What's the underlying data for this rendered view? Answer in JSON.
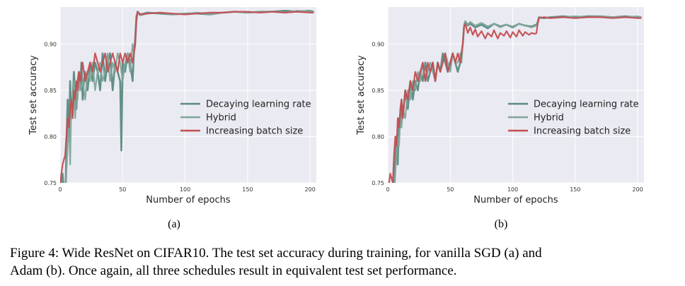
{
  "colors": {
    "plot_background": "#eaeaf2",
    "grid": "#ffffff",
    "decaying": "#5b8a80",
    "hybrid": "#7fa69b",
    "increasing": "#c44e52"
  },
  "caption": {
    "line1": "Figure 4: Wide ResNet on CIFAR10. The test set accuracy during training, for vanilla SGD (a) and",
    "line2": "Adam (b). Once again, all three schedules result in equivalent test set performance."
  },
  "chart_data": [
    {
      "type": "line",
      "panel_label": "(a)",
      "xlabel": "Number of epochs",
      "ylabel": "Test set accuracy",
      "xlim": [
        0,
        205
      ],
      "ylim": [
        0.75,
        0.94
      ],
      "xticks": [
        0,
        50,
        100,
        150,
        200
      ],
      "xtick_labels": [
        "0",
        "50",
        "100",
        "150",
        "200"
      ],
      "yticks": [
        0.75,
        0.8,
        0.85,
        0.9
      ],
      "ytick_labels": [
        "0.75",
        "0.80",
        "0.85",
        "0.90"
      ],
      "grid": true,
      "legend_position": "center-right",
      "series": [
        {
          "name": "Decaying learning rate",
          "x": [
            0,
            2,
            4,
            5,
            6,
            7,
            8,
            9,
            10,
            11,
            12,
            13,
            14,
            15,
            16,
            17,
            18,
            19,
            20,
            22,
            24,
            26,
            28,
            30,
            32,
            34,
            36,
            38,
            40,
            42,
            44,
            46,
            48,
            49,
            50,
            52,
            54,
            56,
            58,
            59,
            60,
            61,
            62,
            64,
            70,
            80,
            90,
            100,
            110,
            120,
            130,
            140,
            150,
            160,
            170,
            180,
            190,
            200,
            203
          ],
          "y": [
            0.74,
            0.76,
            0.72,
            0.79,
            0.84,
            0.8,
            0.86,
            0.82,
            0.84,
            0.87,
            0.85,
            0.83,
            0.86,
            0.87,
            0.85,
            0.88,
            0.84,
            0.86,
            0.87,
            0.85,
            0.88,
            0.86,
            0.88,
            0.87,
            0.85,
            0.89,
            0.86,
            0.88,
            0.89,
            0.85,
            0.88,
            0.87,
            0.86,
            0.785,
            0.88,
            0.87,
            0.89,
            0.88,
            0.86,
            0.89,
            0.9,
            0.925,
            0.935,
            0.932,
            0.934,
            0.933,
            0.932,
            0.933,
            0.933,
            0.932,
            0.934,
            0.935,
            0.934,
            0.935,
            0.935,
            0.936,
            0.935,
            0.936,
            0.935
          ]
        },
        {
          "name": "Hybrid",
          "x": [
            0,
            2,
            4,
            5,
            6,
            7,
            8,
            9,
            10,
            11,
            12,
            13,
            14,
            15,
            16,
            18,
            20,
            22,
            24,
            26,
            28,
            30,
            32,
            34,
            36,
            38,
            40,
            42,
            44,
            46,
            48,
            50,
            52,
            54,
            56,
            58,
            59,
            60,
            61,
            62,
            64,
            70,
            80,
            90,
            100,
            110,
            120,
            130,
            140,
            150,
            160,
            170,
            180,
            190,
            200,
            203
          ],
          "y": [
            0.73,
            0.75,
            0.72,
            0.76,
            0.79,
            0.82,
            0.77,
            0.84,
            0.83,
            0.86,
            0.82,
            0.85,
            0.84,
            0.87,
            0.85,
            0.86,
            0.84,
            0.87,
            0.86,
            0.88,
            0.85,
            0.87,
            0.88,
            0.86,
            0.87,
            0.89,
            0.86,
            0.88,
            0.87,
            0.89,
            0.88,
            0.86,
            0.88,
            0.89,
            0.87,
            0.9,
            0.89,
            0.91,
            0.93,
            0.934,
            0.931,
            0.933,
            0.934,
            0.932,
            0.933,
            0.934,
            0.932,
            0.934,
            0.935,
            0.934,
            0.935,
            0.935,
            0.934,
            0.936,
            0.935,
            0.935
          ]
        },
        {
          "name": "Increasing batch size",
          "x": [
            0,
            2,
            4,
            5,
            6,
            7,
            8,
            9,
            10,
            11,
            12,
            13,
            14,
            15,
            16,
            18,
            20,
            22,
            24,
            26,
            28,
            30,
            32,
            34,
            36,
            38,
            40,
            42,
            44,
            46,
            48,
            50,
            52,
            54,
            56,
            58,
            59,
            60,
            61,
            62,
            64,
            70,
            80,
            90,
            100,
            110,
            120,
            130,
            140,
            150,
            160,
            170,
            180,
            190,
            200,
            203
          ],
          "y": [
            0.75,
            0.77,
            0.78,
            0.8,
            0.82,
            0.81,
            0.83,
            0.84,
            0.82,
            0.85,
            0.84,
            0.86,
            0.85,
            0.87,
            0.86,
            0.88,
            0.86,
            0.87,
            0.88,
            0.87,
            0.89,
            0.88,
            0.87,
            0.88,
            0.89,
            0.87,
            0.88,
            0.89,
            0.88,
            0.87,
            0.89,
            0.88,
            0.89,
            0.88,
            0.89,
            0.88,
            0.89,
            0.9,
            0.93,
            0.935,
            0.932,
            0.933,
            0.934,
            0.933,
            0.932,
            0.933,
            0.934,
            0.934,
            0.935,
            0.935,
            0.934,
            0.935,
            0.934,
            0.935,
            0.934,
            0.934
          ]
        }
      ]
    },
    {
      "type": "line",
      "panel_label": "(b)",
      "xlabel": "Number of epochs",
      "ylabel": "Test set accuracy",
      "xlim": [
        0,
        205
      ],
      "ylim": [
        0.75,
        0.94
      ],
      "xticks": [
        0,
        50,
        100,
        150,
        200
      ],
      "xtick_labels": [
        "0",
        "50",
        "100",
        "150",
        "200"
      ],
      "yticks": [
        0.75,
        0.8,
        0.85,
        0.9
      ],
      "ytick_labels": [
        "0.75",
        "0.80",
        "0.85",
        "0.90"
      ],
      "grid": true,
      "legend_position": "center-right",
      "series": [
        {
          "name": "Decaying learning rate",
          "x": [
            0,
            2,
            4,
            5,
            6,
            7,
            8,
            9,
            10,
            11,
            12,
            14,
            16,
            18,
            20,
            22,
            24,
            26,
            28,
            30,
            32,
            34,
            36,
            38,
            40,
            42,
            44,
            46,
            48,
            50,
            52,
            54,
            56,
            58,
            59,
            60,
            61,
            62,
            64,
            66,
            70,
            75,
            80,
            85,
            90,
            95,
            100,
            105,
            110,
            115,
            119,
            120,
            121,
            125,
            130,
            140,
            150,
            160,
            170,
            180,
            190,
            200,
            203
          ],
          "y": [
            0.74,
            0.73,
            0.75,
            0.74,
            0.78,
            0.8,
            0.77,
            0.82,
            0.81,
            0.84,
            0.82,
            0.85,
            0.83,
            0.86,
            0.84,
            0.86,
            0.85,
            0.87,
            0.86,
            0.88,
            0.86,
            0.87,
            0.88,
            0.86,
            0.88,
            0.87,
            0.89,
            0.88,
            0.87,
            0.88,
            0.89,
            0.88,
            0.87,
            0.88,
            0.89,
            0.9,
            0.918,
            0.924,
            0.92,
            0.922,
            0.918,
            0.921,
            0.917,
            0.922,
            0.919,
            0.921,
            0.918,
            0.922,
            0.92,
            0.919,
            0.921,
            0.924,
            0.929,
            0.928,
            0.929,
            0.93,
            0.929,
            0.93,
            0.93,
            0.929,
            0.93,
            0.929,
            0.929
          ]
        },
        {
          "name": "Hybrid",
          "x": [
            0,
            2,
            4,
            5,
            6,
            7,
            8,
            9,
            10,
            11,
            12,
            14,
            16,
            18,
            20,
            22,
            24,
            26,
            28,
            30,
            32,
            34,
            36,
            38,
            40,
            42,
            44,
            46,
            48,
            50,
            52,
            54,
            56,
            58,
            59,
            60,
            61,
            62,
            64,
            66,
            70,
            75,
            80,
            85,
            90,
            95,
            100,
            105,
            110,
            115,
            119,
            120,
            121,
            125,
            130,
            140,
            150,
            160,
            170,
            180,
            190,
            200,
            203
          ],
          "y": [
            0.73,
            0.74,
            0.75,
            0.73,
            0.76,
            0.78,
            0.8,
            0.79,
            0.82,
            0.81,
            0.83,
            0.82,
            0.85,
            0.84,
            0.86,
            0.85,
            0.87,
            0.86,
            0.88,
            0.86,
            0.87,
            0.88,
            0.87,
            0.86,
            0.88,
            0.87,
            0.88,
            0.89,
            0.88,
            0.87,
            0.89,
            0.88,
            0.88,
            0.89,
            0.88,
            0.9,
            0.921,
            0.925,
            0.921,
            0.924,
            0.92,
            0.923,
            0.919,
            0.922,
            0.918,
            0.921,
            0.919,
            0.922,
            0.92,
            0.918,
            0.92,
            0.923,
            0.928,
            0.929,
            0.928,
            0.929,
            0.93,
            0.929,
            0.93,
            0.929,
            0.929,
            0.93,
            0.929
          ]
        },
        {
          "name": "Increasing batch size",
          "x": [
            0,
            2,
            4,
            5,
            6,
            7,
            8,
            9,
            10,
            11,
            12,
            14,
            16,
            18,
            20,
            22,
            24,
            26,
            28,
            30,
            32,
            34,
            36,
            38,
            40,
            42,
            44,
            46,
            48,
            50,
            52,
            54,
            56,
            58,
            59,
            60,
            61,
            62,
            64,
            66,
            68,
            70,
            72,
            75,
            78,
            80,
            83,
            85,
            88,
            90,
            93,
            95,
            98,
            100,
            103,
            105,
            108,
            110,
            113,
            115,
            118,
            119,
            120,
            121,
            125,
            130,
            140,
            150,
            160,
            170,
            180,
            190,
            200,
            203
          ],
          "y": [
            0.74,
            0.76,
            0.75,
            0.78,
            0.8,
            0.79,
            0.82,
            0.81,
            0.83,
            0.84,
            0.82,
            0.85,
            0.84,
            0.86,
            0.85,
            0.87,
            0.86,
            0.87,
            0.88,
            0.86,
            0.88,
            0.87,
            0.88,
            0.86,
            0.88,
            0.87,
            0.88,
            0.89,
            0.87,
            0.88,
            0.89,
            0.88,
            0.89,
            0.88,
            0.89,
            0.9,
            0.918,
            0.922,
            0.912,
            0.918,
            0.91,
            0.916,
            0.908,
            0.914,
            0.906,
            0.912,
            0.908,
            0.915,
            0.906,
            0.912,
            0.909,
            0.914,
            0.907,
            0.913,
            0.908,
            0.915,
            0.909,
            0.913,
            0.91,
            0.912,
            0.911,
            0.912,
            0.922,
            0.928,
            0.929,
            0.928,
            0.929,
            0.928,
            0.929,
            0.929,
            0.928,
            0.929,
            0.928,
            0.928
          ]
        }
      ]
    }
  ]
}
